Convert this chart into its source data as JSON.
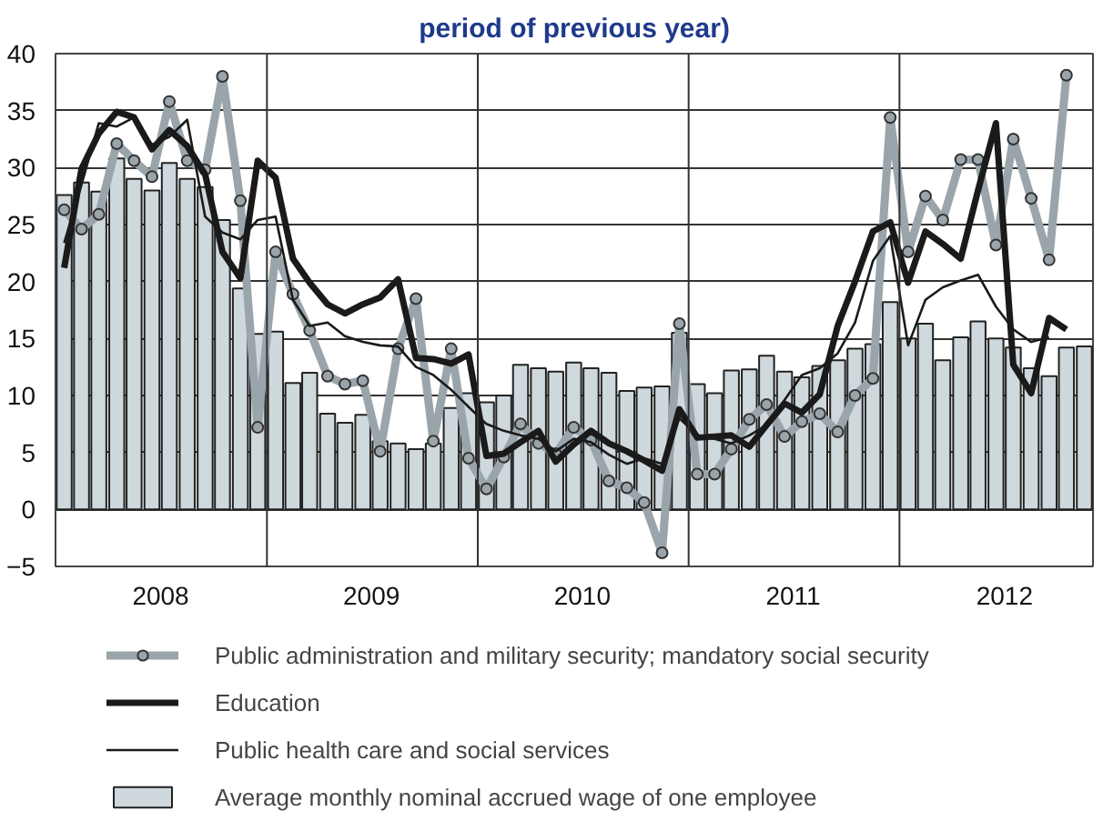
{
  "chart_data": {
    "type": "line",
    "title": "period of previous year)",
    "x": [
      "2008-01-16",
      "2008-02-15",
      "2008-03-16",
      "2008-04-16",
      "2008-05-16",
      "2008-06-16",
      "2008-07-16",
      "2008-08-16",
      "2008-09-16",
      "2008-10-16",
      "2008-11-16",
      "2008-12-16",
      "2009-01-16",
      "2009-02-15",
      "2009-03-16",
      "2009-04-16",
      "2009-05-16",
      "2009-06-16",
      "2009-07-16",
      "2009-08-16",
      "2009-09-16",
      "2009-10-16",
      "2009-11-16",
      "2009-12-16",
      "2010-01-16",
      "2010-02-15",
      "2010-03-16",
      "2010-04-16",
      "2010-05-16",
      "2010-06-16",
      "2010-07-16",
      "2010-08-16",
      "2010-09-16",
      "2010-10-16",
      "2010-11-16",
      "2010-12-16",
      "2011-01-16",
      "2011-02-15",
      "2011-03-16",
      "2011-04-16",
      "2011-05-16",
      "2011-06-16",
      "2011-07-16",
      "2011-08-16",
      "2011-09-16",
      "2011-10-16",
      "2011-11-16",
      "2011-12-16",
      "2012-01-16",
      "2012-02-15",
      "2012-03-16",
      "2012-04-16",
      "2012-05-16",
      "2012-06-16",
      "2012-07-16",
      "2012-08-16",
      "2012-09-16",
      "2012-10-16",
      "2012-11-16"
    ],
    "series": [
      {
        "name": "Public administration and military security; mandatory social security",
        "marker": "circle",
        "color": "#9aa5ab",
        "values": [
          26.3,
          24.6,
          25.9,
          32.1,
          30.6,
          29.2,
          35.8,
          30.6,
          29.8,
          38.0,
          27.1,
          7.2,
          22.6,
          18.9,
          15.7,
          11.7,
          11.0,
          11.3,
          5.1,
          14.1,
          18.5,
          6.0,
          14.1,
          4.5,
          1.8,
          4.6,
          7.5,
          5.8,
          4.9,
          7.2,
          6.1,
          2.5,
          1.9,
          0.6,
          -3.8,
          16.3,
          3.1,
          3.1,
          5.3,
          7.9,
          9.2,
          6.4,
          7.7,
          8.4,
          6.8,
          10.0,
          11.5,
          34.4,
          22.6,
          27.5,
          25.4,
          30.7,
          30.7,
          23.2,
          32.5,
          27.3,
          21.9,
          38.1,
          null
        ]
      },
      {
        "name": "Education",
        "color": "#1a1a1a",
        "values": [
          21.2,
          29.9,
          33.0,
          34.9,
          34.4,
          31.6,
          33.3,
          31.9,
          29.4,
          22.6,
          20.3,
          30.6,
          29.1,
          22.0,
          19.9,
          18.0,
          17.2,
          18.0,
          18.6,
          20.2,
          13.3,
          13.2,
          12.8,
          13.6,
          4.7,
          4.9,
          5.9,
          6.9,
          4.2,
          5.7,
          6.9,
          5.8,
          5.1,
          4.3,
          3.4,
          8.8,
          6.3,
          6.4,
          6.5,
          5.5,
          7.4,
          9.3,
          8.5,
          10.1,
          16.1,
          20.0,
          24.4,
          25.2,
          19.9,
          24.4,
          23.3,
          22.0,
          28.0,
          33.9,
          12.7,
          10.2,
          16.8,
          15.8,
          null
        ]
      },
      {
        "name": "Public health care and social services",
        "color": "#1a1a1a",
        "values": [
          23.4,
          28.5,
          33.9,
          33.6,
          34.4,
          32.0,
          32.7,
          34.2,
          25.7,
          24.3,
          23.7,
          25.4,
          25.7,
          18.4,
          16.1,
          16.4,
          15.2,
          14.7,
          14.4,
          14.3,
          12.5,
          11.8,
          10.5,
          9.0,
          7.5,
          6.9,
          6.5,
          6.2,
          5.1,
          6.2,
          5.9,
          4.8,
          4.0,
          4.5,
          4.0,
          8.0,
          6.5,
          6.2,
          5.8,
          6.5,
          7.4,
          9.6,
          11.8,
          12.4,
          13.7,
          16.4,
          21.8,
          24.0,
          14.4,
          18.4,
          19.5,
          20.1,
          20.6,
          17.8,
          15.8,
          14.7,
          15.1,
          null,
          null
        ]
      },
      {
        "name": "Average monthly nominal accrued wage of one employee",
        "type": "bar",
        "color": "#cfd8dc",
        "values": [
          27.6,
          28.7,
          27.9,
          30.8,
          29.0,
          28.0,
          30.4,
          29.0,
          28.3,
          25.4,
          19.4,
          15.4,
          15.6,
          11.1,
          12.0,
          8.4,
          7.6,
          8.3,
          6.0,
          5.8,
          5.3,
          5.8,
          8.9,
          10.2,
          9.4,
          10.0,
          12.7,
          12.4,
          12.1,
          12.9,
          12.4,
          12.0,
          10.4,
          10.7,
          10.8,
          15.5,
          11.0,
          10.2,
          12.2,
          12.3,
          13.5,
          12.1,
          11.6,
          12.6,
          13.1,
          14.1,
          14.5,
          18.2,
          15.0,
          16.3,
          13.1,
          15.1,
          16.5,
          15.0,
          14.2,
          12.4,
          11.7,
          14.2,
          14.3
        ]
      }
    ],
    "xlim": [
      "2008-01",
      "2012-12"
    ],
    "xticks": [
      {
        "value": "2008-07",
        "label": "2008"
      },
      {
        "value": "2009-07",
        "label": "2009"
      },
      {
        "value": "2010-07",
        "label": "2010"
      },
      {
        "value": "2011-07",
        "label": "2011"
      },
      {
        "value": "2012-07",
        "label": "2012"
      }
    ],
    "ylim": [
      -5,
      40
    ],
    "yticks": [
      -5,
      0,
      5,
      10,
      15,
      20,
      25,
      30,
      35,
      40
    ],
    "ref_lines": [
      {
        "axis": "x",
        "value": "2009-01",
        "color": "#333333"
      },
      {
        "axis": "x",
        "value": "2010-01",
        "color": "#333333"
      },
      {
        "axis": "x",
        "value": "2011-01",
        "color": "#333333"
      },
      {
        "axis": "x",
        "value": "2012-01",
        "color": "#333333"
      }
    ],
    "grid": "y",
    "legend": "bottom"
  }
}
